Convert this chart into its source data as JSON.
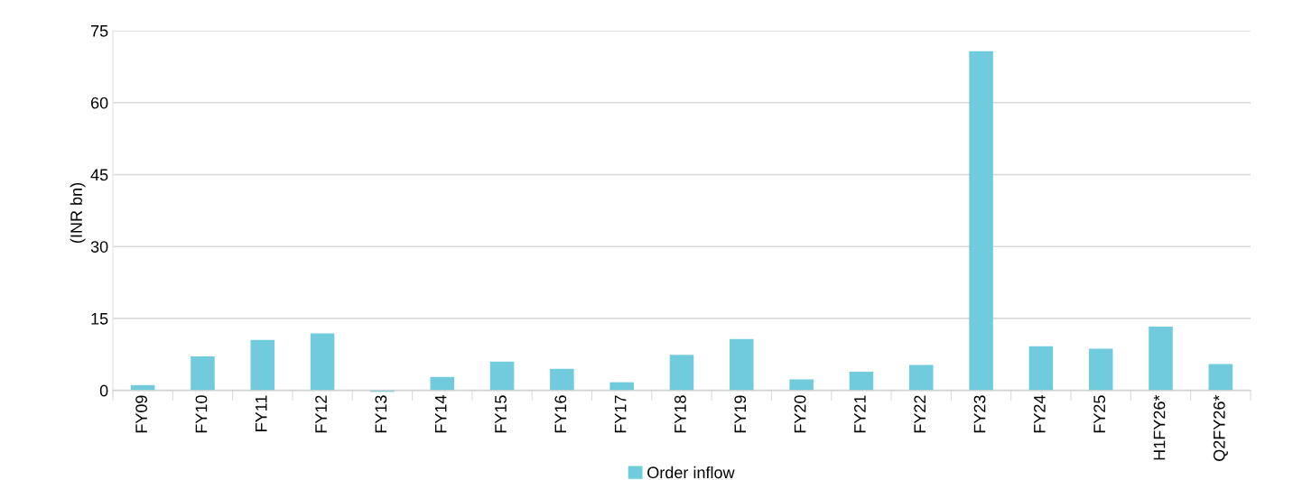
{
  "chart_data": {
    "type": "bar",
    "ylabel": "(INR bn)",
    "categories": [
      "FY09",
      "FY10",
      "FY11",
      "FY12",
      "FY13",
      "FY14",
      "FY15",
      "FY16",
      "FY17",
      "FY18",
      "FY19",
      "FY20",
      "FY21",
      "FY22",
      "FY23",
      "FY24",
      "FY25",
      "H1FY26*",
      "Q2FY26*"
    ],
    "series": [
      {
        "name": "Order inflow",
        "color": "#70cbdc",
        "values": [
          1.1,
          7.1,
          10.5,
          11.9,
          -0.3,
          2.8,
          6.0,
          4.5,
          1.7,
          7.4,
          10.7,
          2.3,
          3.9,
          5.3,
          70.7,
          9.2,
          8.7,
          13.3,
          5.5
        ]
      }
    ],
    "ylim": [
      -1,
      75
    ],
    "yticks": [
      0,
      15,
      30,
      45,
      60,
      75
    ],
    "grid": "y",
    "legend": "bottom"
  }
}
